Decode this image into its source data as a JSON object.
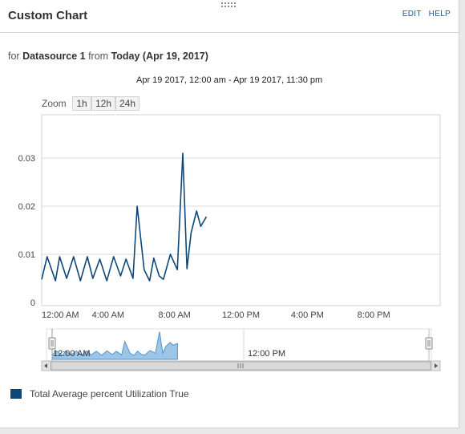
{
  "header": {
    "title": "Custom Chart",
    "edit_label": "EDIT",
    "help_label": "HELP"
  },
  "subtitle": {
    "prefix": "for",
    "datasource": "Datasource 1",
    "from_word": "from",
    "period": "Today (Apr 19, 2017)"
  },
  "date_range": "Apr 19 2017, 12:00 am - Apr 19 2017, 11:30 pm",
  "zoom": {
    "label": "Zoom",
    "buttons": [
      "1h",
      "12h",
      "24h"
    ]
  },
  "navigator": {
    "tick_label": "12:00 PM",
    "handle_label": "12:00 AM"
  },
  "colors": {
    "series": "#0f4779",
    "navigator_fill": "#9cc6e8",
    "navigator_line": "#4f93cc",
    "grid": "#d8d8d8"
  },
  "chart_data": {
    "type": "line",
    "title": "",
    "xlabel": "",
    "ylabel": "",
    "x_ticks": [
      "12:00 AM",
      "4:00 AM",
      "8:00 AM",
      "12:00 PM",
      "4:00 PM",
      "8:00 PM"
    ],
    "y_ticks": [
      "0",
      "0.01",
      "0.02",
      "0.03"
    ],
    "ylim": [
      0,
      0.04
    ],
    "xlim_hours": [
      0,
      24
    ],
    "grid": true,
    "legend_position": "bottom-left",
    "series": [
      {
        "name": "Total Average percent Utilization True",
        "x_hours": [
          0.0,
          0.33,
          0.83,
          1.08,
          1.5,
          1.92,
          2.33,
          2.75,
          3.08,
          3.5,
          3.92,
          4.33,
          4.75,
          5.08,
          5.5,
          5.75,
          6.17,
          6.5,
          6.75,
          7.08,
          7.33,
          7.75,
          8.17,
          8.5,
          8.75,
          9.0,
          9.33,
          9.58,
          9.92
        ],
        "values": [
          0.0048,
          0.0095,
          0.0045,
          0.0095,
          0.005,
          0.0095,
          0.0045,
          0.0095,
          0.005,
          0.009,
          0.0045,
          0.0095,
          0.0055,
          0.009,
          0.005,
          0.02,
          0.0068,
          0.0045,
          0.0092,
          0.0055,
          0.0048,
          0.01,
          0.0068,
          0.031,
          0.007,
          0.0145,
          0.019,
          0.0158,
          0.0178
        ]
      }
    ]
  }
}
